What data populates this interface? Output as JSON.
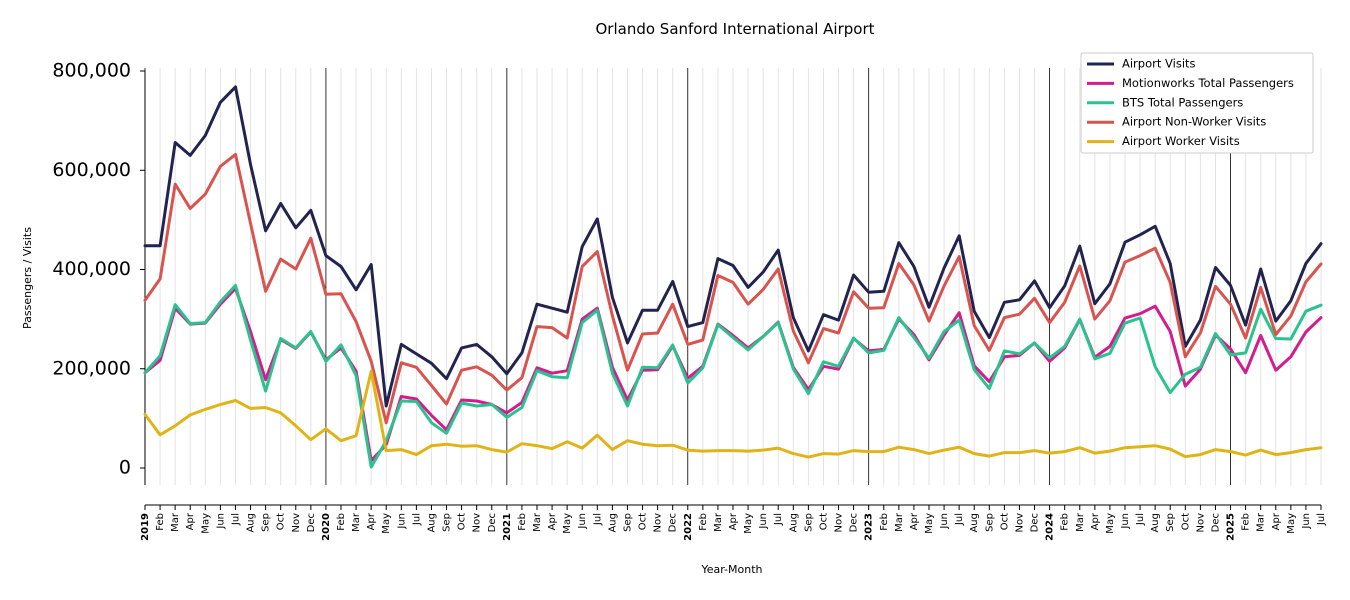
{
  "chart_data": {
    "type": "line",
    "title": "Orlando Sanford International Airport",
    "xlabel": "Year-Month",
    "ylabel": "Passengers / Visits",
    "ylim": [
      -35000,
      810000
    ],
    "yticks": [
      0,
      200000,
      400000,
      600000,
      800000
    ],
    "ytick_labels": [
      "0",
      "200,000",
      "400,000",
      "600,000",
      "800,000"
    ],
    "grid": "vertical monthly",
    "legend_position": "top-right",
    "x": [
      "2019",
      "Feb",
      "Mar",
      "Apr",
      "May",
      "Jun",
      "Jul",
      "Aug",
      "Sep",
      "Oct",
      "Nov",
      "Dec",
      "2020",
      "Feb",
      "Mar",
      "Apr",
      "May",
      "Jun",
      "Jul",
      "Aug",
      "Sep",
      "Oct",
      "Nov",
      "Dec",
      "2021",
      "Feb",
      "Mar",
      "Apr",
      "May",
      "Jun",
      "Jul",
      "Aug",
      "Sep",
      "Oct",
      "Nov",
      "Dec",
      "2022",
      "Feb",
      "Mar",
      "Apr",
      "May",
      "Jun",
      "Jul",
      "Aug",
      "Sep",
      "Oct",
      "Nov",
      "Dec",
      "2023",
      "Feb",
      "Mar",
      "Apr",
      "May",
      "Jun",
      "Jul",
      "Aug",
      "Sep",
      "Oct",
      "Nov",
      "Dec",
      "2024",
      "Feb",
      "Mar",
      "Apr",
      "May",
      "Jun",
      "Jul",
      "Aug",
      "Sep",
      "Oct",
      "Nov",
      "Dec",
      "2025",
      "Feb",
      "Mar",
      "Apr",
      "May",
      "Jun",
      "Jul"
    ],
    "series": [
      {
        "name": "Airport Visits",
        "color": "#22234f",
        "values": [
          448000,
          448000,
          656000,
          630000,
          670000,
          737000,
          768000,
          612000,
          478000,
          533000,
          484000,
          519000,
          428000,
          406000,
          359000,
          410000,
          125000,
          249000,
          230000,
          211000,
          180000,
          242000,
          249000,
          224000,
          190000,
          232000,
          330000,
          322000,
          314000,
          446000,
          502000,
          344000,
          252000,
          318000,
          318000,
          376000,
          285000,
          293000,
          422000,
          408000,
          364000,
          395000,
          439000,
          303000,
          236000,
          309000,
          298000,
          389000,
          354000,
          356000,
          454000,
          406000,
          324000,
          403000,
          468000,
          316000,
          263000,
          334000,
          339000,
          377000,
          323000,
          367000,
          447000,
          331000,
          371000,
          455000,
          470000,
          487000,
          412000,
          245000,
          298000,
          404000,
          368000,
          288000,
          401000,
          296000,
          337000,
          412000,
          452000
        ]
      },
      {
        "name": "Motionworks Total Passengers",
        "color": "#d11d8f",
        "values": [
          192000,
          217000,
          322000,
          290000,
          292000,
          330000,
          362000,
          275000,
          178000,
          259000,
          241000,
          274000,
          218000,
          242000,
          195000,
          15000,
          47000,
          144000,
          139000,
          106000,
          77000,
          137000,
          135000,
          128000,
          111000,
          132000,
          202000,
          191000,
          196000,
          300000,
          322000,
          203000,
          137000,
          197000,
          198000,
          246000,
          181000,
          205000,
          290000,
          267000,
          242000,
          265000,
          294000,
          203000,
          158000,
          205000,
          199000,
          261000,
          236000,
          239000,
          300000,
          269000,
          218000,
          268000,
          313000,
          206000,
          174000,
          224000,
          227000,
          252000,
          215000,
          242000,
          299000,
          223000,
          245000,
          302000,
          311000,
          326000,
          275000,
          165000,
          199000,
          268000,
          240000,
          192000,
          267000,
          197000,
          224000,
          274000,
          303000
        ]
      },
      {
        "name": "BTS Total Passengers",
        "color": "#2ac38e",
        "values": [
          192000,
          226000,
          329000,
          291000,
          293000,
          335000,
          368000,
          258000,
          155000,
          261000,
          242000,
          275000,
          215000,
          248000,
          186000,
          2000,
          55000,
          135000,
          134000,
          91000,
          70000,
          131000,
          125000,
          128000,
          102000,
          122000,
          196000,
          184000,
          182000,
          293000,
          318000,
          191000,
          125000,
          203000,
          202000,
          248000,
          171000,
          202000,
          289000,
          263000,
          238000,
          265000,
          293000,
          200000,
          150000,
          214000,
          205000,
          262000,
          232000,
          237000,
          303000,
          263000,
          221000,
          275000,
          298000,
          198000,
          160000,
          236000,
          230000,
          252000,
          222000,
          245000,
          300000,
          220000,
          231000,
          292000,
          302000,
          204000,
          152000,
          189000,
          203000,
          271000,
          228000,
          232000,
          320000,
          261000,
          260000,
          316000,
          328000
        ]
      },
      {
        "name": "Airport Non-Worker Visits",
        "color": "#d9534f",
        "values": [
          338000,
          381000,
          572000,
          523000,
          552000,
          608000,
          632000,
          493000,
          356000,
          421000,
          401000,
          463000,
          350000,
          351000,
          295000,
          215000,
          91000,
          212000,
          203000,
          166000,
          129000,
          197000,
          204000,
          187000,
          157000,
          182000,
          285000,
          283000,
          262000,
          406000,
          436000,
          307000,
          197000,
          270000,
          272000,
          330000,
          249000,
          258000,
          388000,
          374000,
          330000,
          360000,
          401000,
          276000,
          212000,
          281000,
          272000,
          355000,
          322000,
          323000,
          412000,
          369000,
          296000,
          367000,
          426000,
          287000,
          237000,
          303000,
          310000,
          342000,
          293000,
          334000,
          407000,
          300000,
          337000,
          415000,
          428000,
          443000,
          374000,
          224000,
          272000,
          366000,
          330000,
          262000,
          364000,
          269000,
          306000,
          375000,
          411000
        ]
      },
      {
        "name": "Airport Worker Visits",
        "color": "#e0b416",
        "values": [
          108000,
          67000,
          85000,
          107000,
          118000,
          128000,
          136000,
          120000,
          122000,
          111000,
          85000,
          57000,
          79000,
          55000,
          65000,
          195000,
          35000,
          37000,
          27000,
          45000,
          48000,
          44000,
          45000,
          37000,
          32000,
          49000,
          45000,
          39000,
          53000,
          40000,
          66000,
          37000,
          55000,
          48000,
          45000,
          46000,
          36000,
          34000,
          35000,
          35000,
          34000,
          36000,
          40000,
          29000,
          22000,
          29000,
          28000,
          35000,
          33000,
          33000,
          42000,
          37000,
          29000,
          36000,
          42000,
          29000,
          24000,
          31000,
          31000,
          35000,
          30000,
          33000,
          41000,
          30000,
          34000,
          41000,
          43000,
          45000,
          38000,
          23000,
          27000,
          37000,
          33000,
          26000,
          36000,
          27000,
          31000,
          37000,
          41000
        ]
      }
    ]
  }
}
